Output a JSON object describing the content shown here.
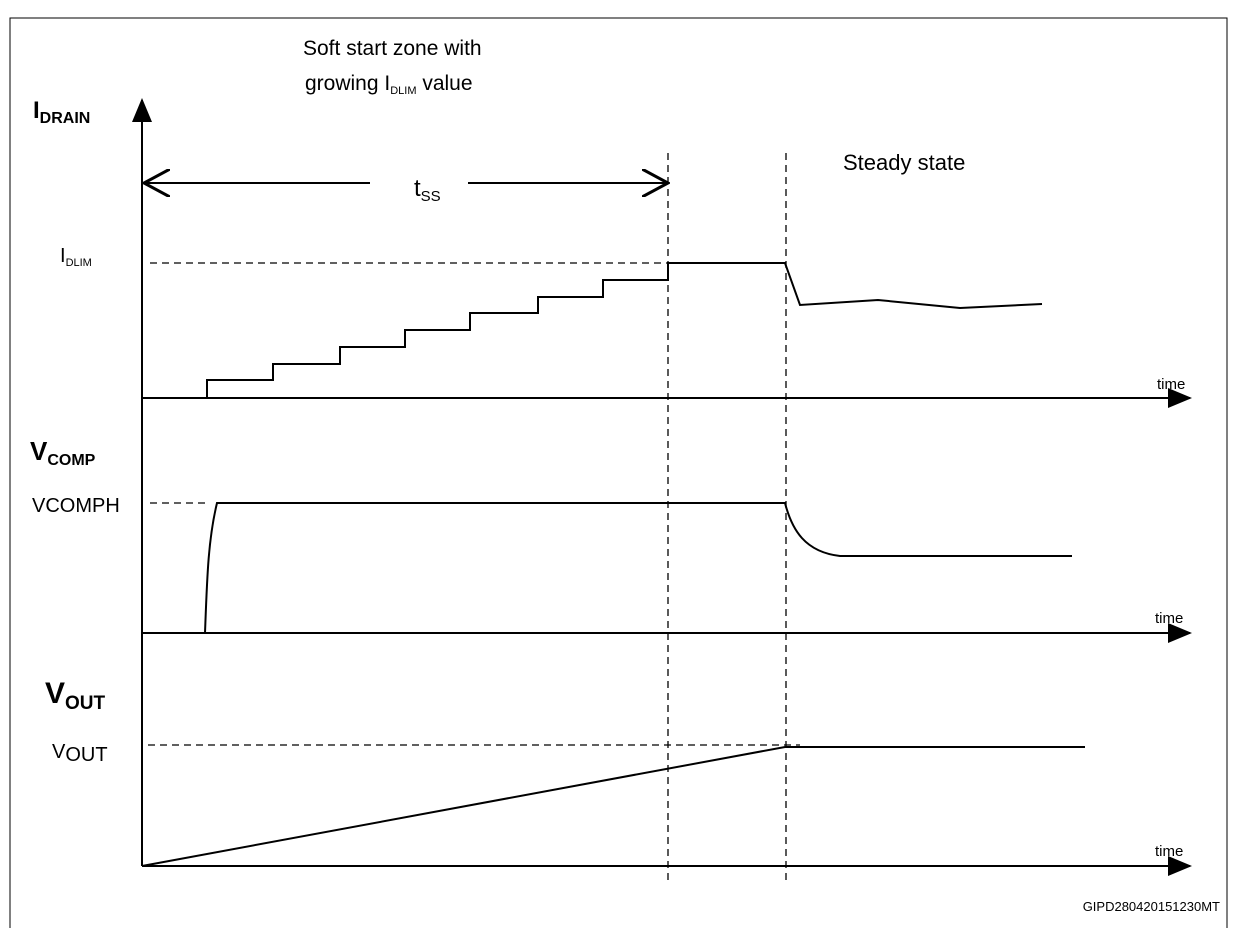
{
  "soft_start_note": {
    "line1": "Soft start zone with",
    "line2_main": "growing I",
    "line2_sub": "DLIM",
    "line2_end": " value"
  },
  "panels": [
    {
      "axis_main": "I",
      "axis_sub": "DRAIN",
      "level_main": "I",
      "level_sub": "DLIM",
      "time": "time"
    },
    {
      "axis_main": "V",
      "axis_sub": "COMP",
      "level_main": "V",
      "level_sub": "COMPH",
      "time": "time"
    },
    {
      "axis_main": "V",
      "axis_sub": "OUT",
      "level_main": "V",
      "level_sub": "OUT",
      "time": "time"
    }
  ],
  "tss": {
    "main": "t",
    "sub": "SS"
  },
  "steady_state": "Steady state",
  "figure_code": "GIPD280420151230MT"
}
